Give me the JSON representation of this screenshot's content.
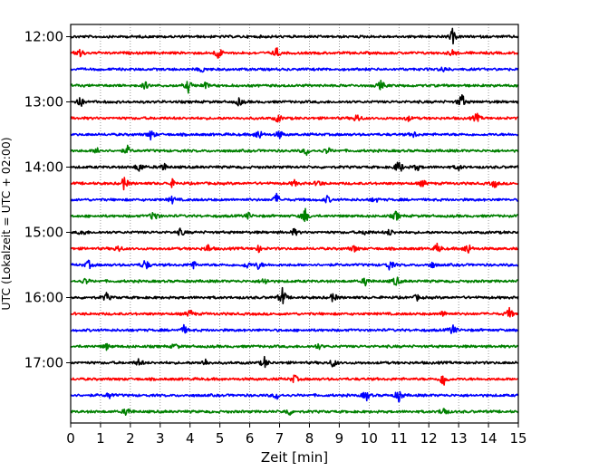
{
  "chart_data": {
    "type": "line",
    "title": "",
    "xlabel": "Zeit  [min]",
    "ylabel": "UTC (Lokalzeit = UTC + 02:00)",
    "xlim": [
      0,
      15
    ],
    "x_ticks": [
      0,
      1,
      2,
      3,
      4,
      5,
      6,
      7,
      8,
      9,
      10,
      11,
      12,
      13,
      14,
      15
    ],
    "y_ticks": [
      "12:00",
      "13:00",
      "14:00",
      "15:00",
      "16:00",
      "17:00"
    ],
    "grid": "vertical dotted",
    "trace_colors": [
      "#000000",
      "#ff0000",
      "#0000ff",
      "#008000"
    ],
    "traces": [
      {
        "start": "12:00",
        "events": [
          [
            12.8,
            1.0
          ]
        ]
      },
      {
        "start": "12:15",
        "events": [
          [
            0.3,
            0.8
          ],
          [
            4.95,
            1.0
          ],
          [
            6.9,
            0.7
          ],
          [
            12.8,
            0.5
          ]
        ]
      },
      {
        "start": "12:30",
        "events": [
          [
            4.4,
            0.4
          ],
          [
            12.5,
            0.4
          ]
        ]
      },
      {
        "start": "12:45",
        "events": [
          [
            2.5,
            0.5
          ],
          [
            3.95,
            0.9
          ],
          [
            4.5,
            0.5
          ],
          [
            10.4,
            0.7
          ]
        ]
      },
      {
        "start": "13:00",
        "events": [
          [
            0.3,
            1.0
          ],
          [
            5.65,
            0.6
          ],
          [
            13.1,
            1.3
          ]
        ]
      },
      {
        "start": "13:15",
        "events": [
          [
            6.95,
            0.6
          ],
          [
            9.6,
            0.7
          ],
          [
            11.3,
            0.4
          ],
          [
            13.6,
            0.7
          ]
        ]
      },
      {
        "start": "13:30",
        "events": [
          [
            2.7,
            0.8
          ],
          [
            6.3,
            0.9
          ],
          [
            7.0,
            0.6
          ],
          [
            11.5,
            0.4
          ]
        ]
      },
      {
        "start": "13:45",
        "events": [
          [
            0.9,
            0.5
          ],
          [
            1.9,
            0.6
          ],
          [
            7.9,
            0.6
          ],
          [
            8.6,
            0.5
          ]
        ]
      },
      {
        "start": "14:00",
        "events": [
          [
            2.3,
            0.8
          ],
          [
            3.1,
            0.7
          ],
          [
            11.0,
            1.2
          ],
          [
            11.6,
            0.5
          ],
          [
            13.0,
            0.4
          ]
        ]
      },
      {
        "start": "14:15",
        "events": [
          [
            1.8,
            1.0
          ],
          [
            3.4,
            0.5
          ],
          [
            7.5,
            0.4
          ],
          [
            8.3,
            0.5
          ],
          [
            11.8,
            0.5
          ],
          [
            14.2,
            0.6
          ]
        ]
      },
      {
        "start": "14:30",
        "events": [
          [
            3.4,
            0.5
          ],
          [
            6.9,
            0.8
          ],
          [
            8.6,
            0.5
          ],
          [
            10.2,
            0.4
          ]
        ]
      },
      {
        "start": "14:45",
        "events": [
          [
            2.8,
            1.0
          ],
          [
            5.95,
            0.4
          ],
          [
            7.85,
            1.2
          ],
          [
            10.9,
            0.7
          ]
        ]
      },
      {
        "start": "15:00",
        "events": [
          [
            0.4,
            0.5
          ],
          [
            3.7,
            0.6
          ],
          [
            7.5,
            0.5
          ],
          [
            9.9,
            0.5
          ],
          [
            10.7,
            0.5
          ]
        ]
      },
      {
        "start": "15:15",
        "events": [
          [
            1.6,
            0.5
          ],
          [
            4.6,
            0.6
          ],
          [
            6.3,
            0.4
          ],
          [
            9.5,
            0.5
          ],
          [
            12.3,
            0.8
          ],
          [
            13.3,
            1.0
          ]
        ]
      },
      {
        "start": "15:30",
        "events": [
          [
            0.6,
            0.6
          ],
          [
            2.5,
            0.9
          ],
          [
            4.1,
            0.6
          ],
          [
            5.9,
            0.5
          ],
          [
            6.3,
            0.6
          ],
          [
            10.7,
            0.8
          ],
          [
            12.1,
            0.5
          ]
        ]
      },
      {
        "start": "15:45",
        "events": [
          [
            0.5,
            0.5
          ],
          [
            6.5,
            0.6
          ],
          [
            9.9,
            0.7
          ],
          [
            10.9,
            0.8
          ]
        ]
      },
      {
        "start": "16:00",
        "events": [
          [
            1.2,
            0.6
          ],
          [
            7.1,
            1.4
          ],
          [
            8.8,
            0.7
          ],
          [
            11.6,
            0.4
          ]
        ]
      },
      {
        "start": "16:15",
        "events": [
          [
            4.0,
            0.6
          ],
          [
            12.5,
            0.5
          ],
          [
            14.7,
            0.8
          ]
        ]
      },
      {
        "start": "16:30",
        "events": [
          [
            3.8,
            0.6
          ],
          [
            12.8,
            0.8
          ]
        ]
      },
      {
        "start": "16:45",
        "events": [
          [
            1.2,
            0.4
          ],
          [
            3.5,
            0.4
          ],
          [
            8.3,
            0.4
          ]
        ]
      },
      {
        "start": "17:00",
        "events": [
          [
            2.3,
            0.6
          ],
          [
            4.5,
            0.6
          ],
          [
            6.5,
            0.8
          ],
          [
            8.8,
            0.7
          ]
        ]
      },
      {
        "start": "17:15",
        "events": [
          [
            7.5,
            0.6
          ],
          [
            12.5,
            1.3
          ]
        ]
      },
      {
        "start": "17:30",
        "events": [
          [
            1.3,
            0.5
          ],
          [
            6.9,
            0.6
          ],
          [
            9.9,
            0.8
          ],
          [
            11.0,
            1.0
          ]
        ]
      },
      {
        "start": "17:45",
        "events": [
          [
            1.9,
            0.8
          ],
          [
            7.3,
            0.6
          ],
          [
            12.5,
            0.8
          ]
        ]
      }
    ]
  }
}
